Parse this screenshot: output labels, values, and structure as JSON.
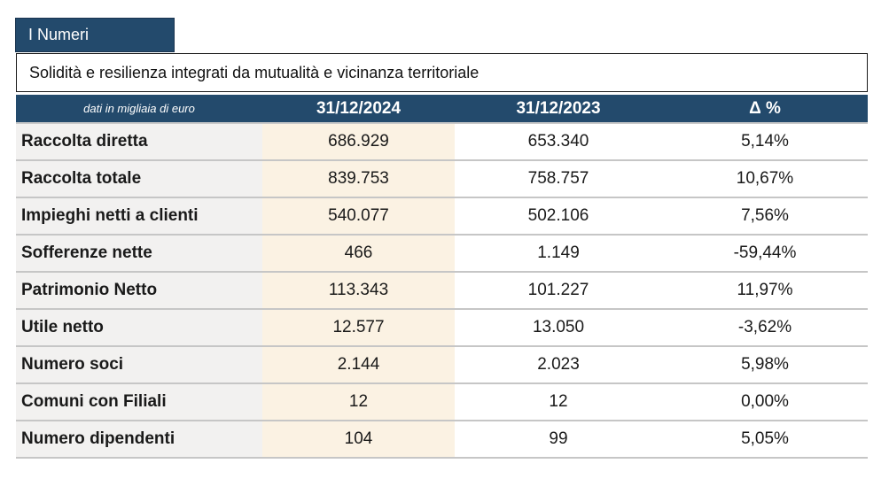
{
  "header": {
    "tab_title": "I Numeri",
    "subtitle": "Solidità e resilienza integrati da mutualità e vicinanza territoriale"
  },
  "table": {
    "columns": [
      "dati in migliaia di euro",
      "31/12/2024",
      "31/12/2023",
      "Δ %"
    ],
    "rows": [
      {
        "label": "Raccolta diretta",
        "v2024": "686.929",
        "v2023": "653.340",
        "delta": "5,14%"
      },
      {
        "label": "Raccolta totale",
        "v2024": "839.753",
        "v2023": "758.757",
        "delta": "10,67%"
      },
      {
        "label": "Impieghi netti a clienti",
        "v2024": "540.077",
        "v2023": "502.106",
        "delta": "7,56%"
      },
      {
        "label": "Sofferenze nette",
        "v2024": "466",
        "v2023": "1.149",
        "delta": "-59,44%"
      },
      {
        "label": "Patrimonio Netto",
        "v2024": "113.343",
        "v2023": "101.227",
        "delta": "11,97%"
      },
      {
        "label": "Utile netto",
        "v2024": "12.577",
        "v2023": "13.050",
        "delta": "-3,62%"
      },
      {
        "label": "Numero soci",
        "v2024": "2.144",
        "v2023": "2.023",
        "delta": "5,98%"
      },
      {
        "label": "Comuni con Filiali",
        "v2024": "12",
        "v2023": "12",
        "delta": "0,00%"
      },
      {
        "label": "Numero dipendenti",
        "v2024": "104",
        "v2023": "99",
        "delta": "5,05%"
      }
    ]
  },
  "colors": {
    "header_bg": "#234a6c",
    "label_col_bg": "#f2f1f0",
    "highlight_col_bg": "#fbf2e3",
    "row_divider": "#c6c6c6"
  }
}
